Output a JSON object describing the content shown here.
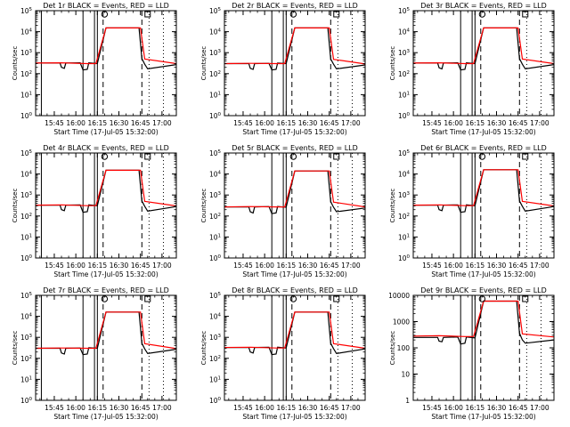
{
  "colors": {
    "events": "#000000",
    "lld": "#ff0000",
    "background": "#ffffff"
  },
  "chart_data": [
    {
      "type": "line",
      "title": "Det 1r BLACK = Events, RED = LLD",
      "xlabel": "Start Time (17-Jul-05 15:32:00)",
      "ylabel": "Counts/sec",
      "yscale": "log",
      "ylim": [
        1,
        100000
      ],
      "yticks": [
        1,
        10,
        100,
        1000,
        10000,
        100000
      ],
      "ytick_style": "exp",
      "xlim": [
        "15:32",
        "17:10"
      ],
      "xticks": [
        "15:45",
        "16:00",
        "16:15",
        "16:30",
        "16:45",
        "17:00"
      ],
      "solid_vlines": [
        "15:36",
        "16:05",
        "16:13",
        "16:15"
      ],
      "dashed_vlines": [
        "16:19",
        "16:46"
      ],
      "dotted_vlines": [
        "15:32",
        "16:51",
        "17:01"
      ],
      "markers": [
        {
          "shape": "circle",
          "x": "16:20"
        },
        {
          "shape": "square",
          "x": "16:50"
        }
      ],
      "series": [
        {
          "name": "Events",
          "color": "#000000",
          "x": [
            "15:32",
            "15:49",
            "15:50",
            "15:52",
            "15:53",
            "16:03",
            "16:05",
            "16:08",
            "16:09",
            "16:15",
            "16:21",
            "16:44",
            "16:46",
            "16:48",
            "16:50",
            "17:10"
          ],
          "values": [
            320,
            320,
            200,
            180,
            320,
            330,
            150,
            160,
            330,
            300,
            15000,
            15000,
            520,
            280,
            170,
            270
          ]
        },
        {
          "name": "LLD",
          "color": "#ff0000",
          "x": [
            "15:32",
            "15:50",
            "16:08",
            "16:14",
            "16:21",
            "16:45",
            "16:48",
            "17:10"
          ],
          "values": [
            320,
            330,
            300,
            300,
            15000,
            15000,
            500,
            300
          ]
        }
      ]
    },
    {
      "type": "line",
      "title": "Det 2r BLACK = Events, RED = LLD",
      "xlabel": "Start Time (17-Jul-05 15:32:00)",
      "ylabel": "Counts/sec",
      "yscale": "log",
      "ylim": [
        1,
        100000
      ],
      "yticks": [
        1,
        10,
        100,
        1000,
        10000,
        100000
      ],
      "ytick_style": "exp",
      "xlim": [
        "15:32",
        "17:10"
      ],
      "xticks": [
        "15:45",
        "16:00",
        "16:15",
        "16:30",
        "16:45",
        "17:00"
      ],
      "solid_vlines": [
        "16:05",
        "16:13",
        "16:15"
      ],
      "dashed_vlines": [
        "16:19",
        "16:46"
      ],
      "dotted_vlines": [
        "15:32",
        "16:51",
        "17:01"
      ],
      "markers": [
        {
          "shape": "circle",
          "x": "16:20"
        },
        {
          "shape": "square",
          "x": "16:50"
        }
      ],
      "series": [
        {
          "name": "Events",
          "color": "#000000",
          "x": [
            "15:32",
            "15:49",
            "15:50",
            "15:52",
            "15:53",
            "16:03",
            "16:05",
            "16:08",
            "16:09",
            "16:15",
            "16:21",
            "16:44",
            "16:46",
            "16:48",
            "16:50",
            "17:10"
          ],
          "values": [
            300,
            300,
            180,
            160,
            300,
            310,
            150,
            160,
            320,
            300,
            15000,
            15000,
            500,
            280,
            170,
            260
          ]
        },
        {
          "name": "LLD",
          "color": "#ff0000",
          "x": [
            "15:32",
            "15:50",
            "16:08",
            "16:14",
            "16:21",
            "16:45",
            "16:48",
            "17:10"
          ],
          "values": [
            300,
            310,
            300,
            300,
            15000,
            15000,
            480,
            290
          ]
        }
      ]
    },
    {
      "type": "line",
      "title": "Det 3r BLACK = Events, RED = LLD",
      "xlabel": "Start Time (17-Jul-05 15:32:00)",
      "ylabel": "Counts/sec",
      "yscale": "log",
      "ylim": [
        1,
        100000
      ],
      "yticks": [
        1,
        10,
        100,
        1000,
        10000,
        100000
      ],
      "ytick_style": "exp",
      "xlim": [
        "15:32",
        "17:10"
      ],
      "xticks": [
        "15:45",
        "16:00",
        "16:15",
        "16:30",
        "16:45",
        "17:00"
      ],
      "solid_vlines": [
        "16:05",
        "16:13",
        "16:15"
      ],
      "dashed_vlines": [
        "16:19",
        "16:46"
      ],
      "dotted_vlines": [
        "15:32",
        "16:51",
        "17:01"
      ],
      "markers": [
        {
          "shape": "circle",
          "x": "16:20"
        },
        {
          "shape": "square",
          "x": "16:50"
        }
      ],
      "series": [
        {
          "name": "Events",
          "color": "#000000",
          "x": [
            "15:32",
            "15:49",
            "15:50",
            "15:52",
            "15:53",
            "16:03",
            "16:05",
            "16:08",
            "16:09",
            "16:15",
            "16:21",
            "16:44",
            "16:46",
            "16:48",
            "16:50",
            "17:10"
          ],
          "values": [
            320,
            320,
            190,
            170,
            320,
            330,
            150,
            160,
            330,
            300,
            15000,
            15000,
            520,
            280,
            170,
            270
          ]
        },
        {
          "name": "LLD",
          "color": "#ff0000",
          "x": [
            "15:32",
            "15:50",
            "16:08",
            "16:14",
            "16:21",
            "16:45",
            "16:48",
            "17:10"
          ],
          "values": [
            320,
            330,
            300,
            300,
            15000,
            15000,
            500,
            300
          ]
        }
      ]
    },
    {
      "type": "line",
      "title": "Det 4r BLACK = Events, RED = LLD",
      "xlabel": "Start Time (17-Jul-05 15:32:00)",
      "ylabel": "Counts/sec",
      "yscale": "log",
      "ylim": [
        1,
        100000
      ],
      "yticks": [
        1,
        10,
        100,
        1000,
        10000,
        100000
      ],
      "ytick_style": "exp",
      "xlim": [
        "15:32",
        "17:10"
      ],
      "xticks": [
        "15:45",
        "16:00",
        "16:15",
        "16:30",
        "16:45",
        "17:00"
      ],
      "solid_vlines": [
        "15:36",
        "16:05",
        "16:13",
        "16:15"
      ],
      "dashed_vlines": [
        "16:19",
        "16:46"
      ],
      "dotted_vlines": [
        "15:32",
        "16:51",
        "17:01"
      ],
      "markers": [
        {
          "shape": "circle",
          "x": "16:20"
        },
        {
          "shape": "square",
          "x": "16:50"
        }
      ],
      "series": [
        {
          "name": "Events",
          "color": "#000000",
          "x": [
            "15:32",
            "15:49",
            "15:50",
            "15:52",
            "15:53",
            "16:03",
            "16:05",
            "16:08",
            "16:09",
            "16:15",
            "16:21",
            "16:44",
            "16:46",
            "16:48",
            "16:50",
            "17:10"
          ],
          "values": [
            330,
            330,
            200,
            180,
            330,
            340,
            150,
            160,
            340,
            310,
            15000,
            15000,
            520,
            290,
            170,
            280
          ]
        },
        {
          "name": "LLD",
          "color": "#ff0000",
          "x": [
            "15:32",
            "15:50",
            "16:08",
            "16:14",
            "16:21",
            "16:45",
            "16:48",
            "17:10"
          ],
          "values": [
            330,
            340,
            310,
            310,
            15000,
            15000,
            500,
            300
          ]
        }
      ]
    },
    {
      "type": "line",
      "title": "Det 5r BLACK = Events, RED = LLD",
      "xlabel": "Start Time (17-Jul-05 15:32:00)",
      "ylabel": "Counts/sec",
      "yscale": "log",
      "ylim": [
        1,
        100000
      ],
      "yticks": [
        1,
        10,
        100,
        1000,
        10000,
        100000
      ],
      "ytick_style": "exp",
      "xlim": [
        "15:32",
        "17:10"
      ],
      "xticks": [
        "15:45",
        "16:00",
        "16:15",
        "16:30",
        "16:45",
        "17:00"
      ],
      "solid_vlines": [
        "16:05",
        "16:13",
        "16:15"
      ],
      "dashed_vlines": [
        "16:19",
        "16:46"
      ],
      "dotted_vlines": [
        "15:32",
        "16:51",
        "17:01"
      ],
      "markers": [
        {
          "shape": "circle",
          "x": "16:20"
        },
        {
          "shape": "square",
          "x": "16:50"
        }
      ],
      "series": [
        {
          "name": "Events",
          "color": "#000000",
          "x": [
            "15:32",
            "15:49",
            "15:50",
            "15:52",
            "15:53",
            "16:03",
            "16:05",
            "16:08",
            "16:09",
            "16:15",
            "16:21",
            "16:44",
            "16:46",
            "16:48",
            "16:50",
            "17:10"
          ],
          "values": [
            270,
            270,
            160,
            140,
            270,
            280,
            130,
            140,
            280,
            260,
            14000,
            14000,
            480,
            260,
            160,
            240
          ]
        },
        {
          "name": "LLD",
          "color": "#ff0000",
          "x": [
            "15:32",
            "15:50",
            "16:08",
            "16:14",
            "16:21",
            "16:45",
            "16:48",
            "17:10"
          ],
          "values": [
            270,
            280,
            270,
            270,
            14000,
            14000,
            460,
            270
          ]
        }
      ]
    },
    {
      "type": "line",
      "title": "Det 6r BLACK = Events, RED = LLD",
      "xlabel": "Start Time (17-Jul-05 15:32:00)",
      "ylabel": "Counts/sec",
      "yscale": "log",
      "ylim": [
        1,
        100000
      ],
      "yticks": [
        1,
        10,
        100,
        1000,
        10000,
        100000
      ],
      "ytick_style": "exp",
      "xlim": [
        "15:32",
        "17:10"
      ],
      "xticks": [
        "15:45",
        "16:00",
        "16:15",
        "16:30",
        "16:45",
        "17:00"
      ],
      "solid_vlines": [
        "16:05",
        "16:13",
        "16:15"
      ],
      "dashed_vlines": [
        "16:19",
        "16:46"
      ],
      "dotted_vlines": [
        "15:32",
        "16:51",
        "17:01"
      ],
      "markers": [
        {
          "shape": "circle",
          "x": "16:20"
        },
        {
          "shape": "square",
          "x": "16:50"
        }
      ],
      "series": [
        {
          "name": "Events",
          "color": "#000000",
          "x": [
            "15:32",
            "15:49",
            "15:50",
            "15:52",
            "15:53",
            "16:03",
            "16:05",
            "16:08",
            "16:09",
            "16:15",
            "16:21",
            "16:44",
            "16:46",
            "16:48",
            "16:50",
            "17:10"
          ],
          "values": [
            330,
            330,
            200,
            180,
            330,
            340,
            150,
            160,
            340,
            310,
            16000,
            16000,
            520,
            290,
            170,
            280
          ]
        },
        {
          "name": "LLD",
          "color": "#ff0000",
          "x": [
            "15:32",
            "15:50",
            "16:08",
            "16:14",
            "16:21",
            "16:45",
            "16:48",
            "17:10"
          ],
          "values": [
            330,
            340,
            310,
            310,
            16000,
            16000,
            500,
            300
          ]
        }
      ]
    },
    {
      "type": "line",
      "title": "Det 7r BLACK = Events, RED = LLD",
      "xlabel": "Start Time (17-Jul-05 15:32:00)",
      "ylabel": "Counts/sec",
      "yscale": "log",
      "ylim": [
        1,
        100000
      ],
      "yticks": [
        1,
        10,
        100,
        1000,
        10000,
        100000
      ],
      "ytick_style": "exp",
      "xlim": [
        "15:32",
        "17:10"
      ],
      "xticks": [
        "15:45",
        "16:00",
        "16:15",
        "16:30",
        "16:45",
        "17:00"
      ],
      "solid_vlines": [
        "15:36",
        "16:05",
        "16:13",
        "16:15"
      ],
      "dashed_vlines": [
        "16:19",
        "16:46"
      ],
      "dotted_vlines": [
        "15:32",
        "16:51",
        "17:01"
      ],
      "markers": [
        {
          "shape": "circle",
          "x": "16:20"
        },
        {
          "shape": "square",
          "x": "16:50"
        }
      ],
      "series": [
        {
          "name": "Events",
          "color": "#000000",
          "x": [
            "15:32",
            "15:49",
            "15:50",
            "15:52",
            "15:53",
            "16:03",
            "16:05",
            "16:08",
            "16:09",
            "16:15",
            "16:21",
            "16:44",
            "16:46",
            "16:48",
            "16:50",
            "17:10"
          ],
          "values": [
            300,
            300,
            180,
            160,
            300,
            310,
            150,
            160,
            320,
            300,
            16000,
            16000,
            520,
            280,
            170,
            270
          ]
        },
        {
          "name": "LLD",
          "color": "#ff0000",
          "x": [
            "15:32",
            "15:50",
            "16:08",
            "16:14",
            "16:21",
            "16:45",
            "16:48",
            "17:10"
          ],
          "values": [
            300,
            310,
            300,
            300,
            16000,
            16000,
            500,
            290
          ]
        }
      ]
    },
    {
      "type": "line",
      "title": "Det 8r BLACK = Events, RED = LLD",
      "xlabel": "Start Time (17-Jul-05 15:32:00)",
      "ylabel": "Counts/sec",
      "yscale": "log",
      "ylim": [
        1,
        100000
      ],
      "yticks": [
        1,
        10,
        100,
        1000,
        10000,
        100000
      ],
      "ytick_style": "exp",
      "xlim": [
        "15:32",
        "17:10"
      ],
      "xticks": [
        "15:45",
        "16:00",
        "16:15",
        "16:30",
        "16:45",
        "17:00"
      ],
      "solid_vlines": [
        "16:05",
        "16:13",
        "16:15"
      ],
      "dashed_vlines": [
        "16:19",
        "16:46"
      ],
      "dotted_vlines": [
        "15:32",
        "16:51",
        "17:01"
      ],
      "markers": [
        {
          "shape": "circle",
          "x": "16:20"
        },
        {
          "shape": "square",
          "x": "16:50"
        }
      ],
      "series": [
        {
          "name": "Events",
          "color": "#000000",
          "x": [
            "15:32",
            "15:49",
            "15:50",
            "15:52",
            "15:53",
            "16:03",
            "16:05",
            "16:08",
            "16:09",
            "16:15",
            "16:21",
            "16:44",
            "16:46",
            "16:48",
            "16:50",
            "17:10"
          ],
          "values": [
            330,
            330,
            200,
            180,
            330,
            340,
            150,
            160,
            340,
            310,
            16000,
            16000,
            520,
            290,
            170,
            280
          ]
        },
        {
          "name": "LLD",
          "color": "#ff0000",
          "x": [
            "15:32",
            "15:50",
            "16:08",
            "16:14",
            "16:21",
            "16:45",
            "16:48",
            "17:10"
          ],
          "values": [
            330,
            340,
            310,
            310,
            16000,
            16000,
            500,
            300
          ]
        }
      ]
    },
    {
      "type": "line",
      "title": "Det 9r BLACK = Events, RED = LLD",
      "xlabel": "Start Time (17-Jul-05 15:32:00)",
      "ylabel": "Counts/sec",
      "yscale": "log",
      "ylim": [
        1,
        10000
      ],
      "yticks": [
        1,
        10,
        100,
        1000,
        10000
      ],
      "ytick_style": "plain",
      "xlim": [
        "15:32",
        "17:10"
      ],
      "xticks": [
        "15:45",
        "16:00",
        "16:15",
        "16:30",
        "16:45",
        "17:00"
      ],
      "solid_vlines": [
        "16:05",
        "16:13",
        "16:15"
      ],
      "dashed_vlines": [
        "16:19",
        "16:46"
      ],
      "dotted_vlines": [
        "15:32",
        "16:51",
        "17:01"
      ],
      "markers": [
        {
          "shape": "circle",
          "x": "16:20"
        },
        {
          "shape": "square",
          "x": "16:50"
        }
      ],
      "series": [
        {
          "name": "Events",
          "color": "#000000",
          "x": [
            "15:32",
            "15:49",
            "15:50",
            "15:52",
            "15:53",
            "16:03",
            "16:05",
            "16:08",
            "16:09",
            "16:15",
            "16:21",
            "16:44",
            "16:46",
            "16:48",
            "16:50",
            "17:10"
          ],
          "values": [
            250,
            250,
            180,
            170,
            250,
            260,
            140,
            150,
            260,
            240,
            6000,
            6000,
            360,
            200,
            150,
            200
          ]
        },
        {
          "name": "LLD",
          "color": "#ff0000",
          "x": [
            "15:32",
            "15:50",
            "16:08",
            "16:14",
            "16:21",
            "16:45",
            "16:48",
            "17:10"
          ],
          "values": [
            280,
            290,
            270,
            270,
            6000,
            6000,
            340,
            260
          ]
        }
      ]
    }
  ]
}
